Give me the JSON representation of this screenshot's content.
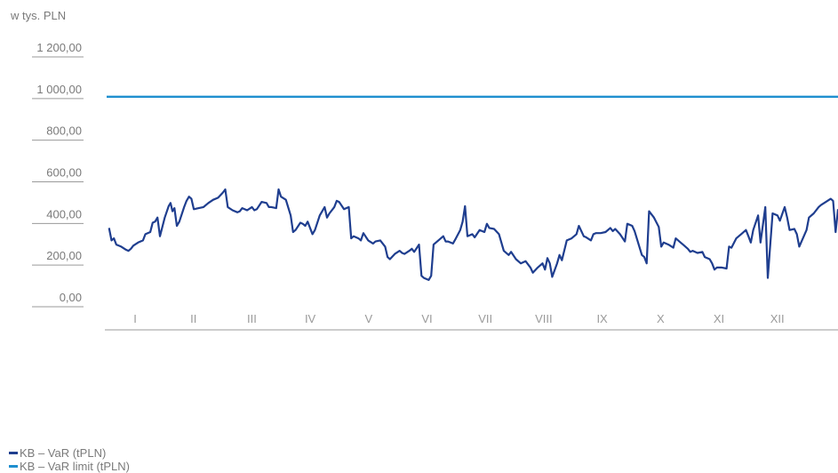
{
  "chart_data": {
    "type": "line",
    "unit_label": "w tys. PLN",
    "y_ticks": [
      "0,00",
      "200,00",
      "400,00",
      "600,00",
      "800,00",
      "1 000,00",
      "1 200,00"
    ],
    "y_tick_values": [
      0,
      200,
      400,
      600,
      800,
      1000,
      1200
    ],
    "ylim": [
      0,
      1200
    ],
    "categories": [
      "I",
      "II",
      "III",
      "IV",
      "V",
      "VI",
      "VII",
      "VIII",
      "IX",
      "X",
      "XI",
      "XII"
    ],
    "series": [
      {
        "name": "KB – VaR (tPLN)",
        "color": "#1f3e8f",
        "values": [
          [
            0.05,
            370
          ],
          [
            0.1,
            310
          ],
          [
            0.15,
            320
          ],
          [
            0.2,
            290
          ],
          [
            0.3,
            280
          ],
          [
            0.4,
            265
          ],
          [
            0.45,
            260
          ],
          [
            0.5,
            270
          ],
          [
            0.55,
            285
          ],
          [
            0.65,
            300
          ],
          [
            0.75,
            310
          ],
          [
            0.8,
            340
          ],
          [
            0.9,
            350
          ],
          [
            0.95,
            395
          ],
          [
            1.0,
            400
          ],
          [
            1.05,
            420
          ],
          [
            1.1,
            330
          ],
          [
            1.2,
            420
          ],
          [
            1.28,
            475
          ],
          [
            1.32,
            490
          ],
          [
            1.36,
            450
          ],
          [
            1.4,
            465
          ],
          [
            1.45,
            380
          ],
          [
            1.5,
            400
          ],
          [
            1.6,
            470
          ],
          [
            1.65,
            500
          ],
          [
            1.7,
            520
          ],
          [
            1.75,
            510
          ],
          [
            1.8,
            460
          ],
          [
            1.9,
            465
          ],
          [
            2.0,
            470
          ],
          [
            2.1,
            490
          ],
          [
            2.2,
            505
          ],
          [
            2.3,
            515
          ],
          [
            2.4,
            540
          ],
          [
            2.45,
            555
          ],
          [
            2.5,
            470
          ],
          [
            2.6,
            455
          ],
          [
            2.7,
            445
          ],
          [
            2.75,
            450
          ],
          [
            2.8,
            465
          ],
          [
            2.9,
            455
          ],
          [
            3.0,
            470
          ],
          [
            3.05,
            455
          ],
          [
            3.1,
            460
          ],
          [
            3.2,
            495
          ],
          [
            3.3,
            490
          ],
          [
            3.35,
            470
          ],
          [
            3.4,
            470
          ],
          [
            3.5,
            465
          ],
          [
            3.55,
            555
          ],
          [
            3.6,
            520
          ],
          [
            3.7,
            505
          ],
          [
            3.8,
            430
          ],
          [
            3.85,
            350
          ],
          [
            3.9,
            360
          ],
          [
            4.0,
            395
          ],
          [
            4.05,
            390
          ],
          [
            4.1,
            380
          ],
          [
            4.15,
            400
          ],
          [
            4.25,
            340
          ],
          [
            4.3,
            360
          ],
          [
            4.4,
            430
          ],
          [
            4.5,
            470
          ],
          [
            4.55,
            420
          ],
          [
            4.6,
            440
          ],
          [
            4.7,
            470
          ],
          [
            4.75,
            500
          ],
          [
            4.8,
            495
          ],
          [
            4.9,
            460
          ],
          [
            5.0,
            470
          ],
          [
            5.05,
            320
          ],
          [
            5.1,
            330
          ],
          [
            5.2,
            320
          ],
          [
            5.25,
            310
          ],
          [
            5.3,
            345
          ],
          [
            5.4,
            310
          ],
          [
            5.5,
            295
          ],
          [
            5.55,
            305
          ],
          [
            5.65,
            310
          ],
          [
            5.75,
            280
          ],
          [
            5.8,
            230
          ],
          [
            5.85,
            220
          ],
          [
            5.95,
            245
          ],
          [
            6.05,
            260
          ],
          [
            6.1,
            250
          ],
          [
            6.15,
            245
          ],
          [
            6.25,
            260
          ],
          [
            6.3,
            270
          ],
          [
            6.35,
            255
          ],
          [
            6.45,
            290
          ],
          [
            6.5,
            140
          ],
          [
            6.55,
            130
          ],
          [
            6.65,
            120
          ],
          [
            6.7,
            140
          ],
          [
            6.75,
            290
          ],
          [
            6.85,
            310
          ],
          [
            6.95,
            330
          ],
          [
            7.0,
            305
          ],
          [
            7.05,
            305
          ],
          [
            7.15,
            295
          ],
          [
            7.2,
            315
          ],
          [
            7.3,
            360
          ],
          [
            7.35,
            400
          ],
          [
            7.4,
            475
          ],
          [
            7.45,
            330
          ],
          [
            7.55,
            340
          ],
          [
            7.6,
            325
          ],
          [
            7.7,
            360
          ],
          [
            7.8,
            350
          ],
          [
            7.85,
            390
          ],
          [
            7.9,
            370
          ],
          [
            8.0,
            365
          ],
          [
            8.1,
            340
          ],
          [
            8.2,
            260
          ],
          [
            8.3,
            240
          ],
          [
            8.35,
            255
          ],
          [
            8.45,
            220
          ],
          [
            8.55,
            200
          ],
          [
            8.65,
            210
          ],
          [
            8.75,
            180
          ],
          [
            8.8,
            155
          ],
          [
            8.9,
            180
          ],
          [
            9.0,
            200
          ],
          [
            9.05,
            170
          ],
          [
            9.1,
            225
          ],
          [
            9.15,
            200
          ],
          [
            9.2,
            135
          ],
          [
            9.3,
            200
          ],
          [
            9.35,
            240
          ],
          [
            9.4,
            215
          ],
          [
            9.5,
            310
          ],
          [
            9.6,
            320
          ],
          [
            9.7,
            340
          ],
          [
            9.75,
            380
          ],
          [
            9.85,
            330
          ],
          [
            9.9,
            325
          ],
          [
            10.0,
            310
          ],
          [
            10.05,
            340
          ],
          [
            10.1,
            345
          ],
          [
            10.2,
            345
          ],
          [
            10.3,
            350
          ],
          [
            10.4,
            370
          ],
          [
            10.45,
            355
          ],
          [
            10.5,
            365
          ],
          [
            10.6,
            340
          ],
          [
            10.7,
            305
          ],
          [
            10.75,
            390
          ],
          [
            10.85,
            380
          ],
          [
            10.9,
            355
          ],
          [
            11.05,
            240
          ],
          [
            11.1,
            230
          ],
          [
            11.15,
            200
          ],
          [
            11.2,
            450
          ],
          [
            11.3,
            420
          ],
          [
            11.4,
            375
          ],
          [
            11.45,
            280
          ],
          [
            11.5,
            300
          ],
          [
            11.6,
            290
          ],
          [
            11.7,
            275
          ],
          [
            11.75,
            320
          ],
          [
            11.85,
            300
          ],
          [
            11.9,
            290
          ],
          [
            12.0,
            270
          ],
          [
            12.05,
            255
          ],
          [
            12.1,
            260
          ],
          [
            12.2,
            250
          ],
          [
            12.3,
            255
          ],
          [
            12.35,
            230
          ],
          [
            12.45,
            220
          ],
          [
            12.5,
            200
          ],
          [
            12.55,
            170
          ],
          [
            12.6,
            180
          ],
          [
            12.7,
            180
          ],
          [
            12.8,
            175
          ],
          [
            12.85,
            280
          ],
          [
            12.9,
            275
          ],
          [
            13.0,
            320
          ],
          [
            13.1,
            340
          ],
          [
            13.2,
            360
          ],
          [
            13.25,
            330
          ],
          [
            13.3,
            300
          ],
          [
            13.35,
            360
          ],
          [
            13.45,
            430
          ],
          [
            13.5,
            300
          ],
          [
            13.6,
            470
          ],
          [
            13.65,
            130
          ],
          [
            13.75,
            440
          ],
          [
            13.85,
            430
          ],
          [
            13.9,
            405
          ],
          [
            14.0,
            470
          ],
          [
            14.05,
            420
          ],
          [
            14.1,
            360
          ],
          [
            14.2,
            365
          ],
          [
            14.25,
            340
          ],
          [
            14.3,
            280
          ],
          [
            14.45,
            360
          ],
          [
            14.5,
            420
          ],
          [
            14.6,
            440
          ],
          [
            14.7,
            470
          ],
          [
            14.75,
            480
          ],
          [
            14.85,
            495
          ],
          [
            14.95,
            510
          ],
          [
            15.0,
            500
          ],
          [
            15.05,
            350
          ],
          [
            15.1,
            460
          ]
        ]
      },
      {
        "name": "KB – VaR limit (tPLN)",
        "color": "#1f8fcf",
        "values": [
          [
            0,
            1000
          ],
          [
            15.1,
            1000
          ]
        ]
      }
    ],
    "grid": false,
    "legend_position": "bottom-left"
  }
}
